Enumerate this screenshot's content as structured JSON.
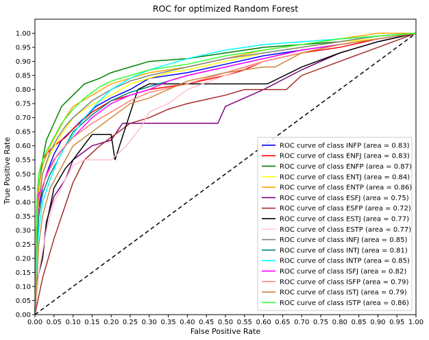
{
  "chart_data": {
    "type": "line",
    "title": "ROC for optimized Random Forest",
    "xlabel": "False Positive Rate",
    "ylabel": "True Positive Rate",
    "xlim": [
      0,
      1
    ],
    "ylim": [
      0,
      1.05
    ],
    "xticks": [
      "0.00",
      "0.05",
      "0.10",
      "0.15",
      "0.20",
      "0.25",
      "0.30",
      "0.35",
      "0.40",
      "0.45",
      "0.50",
      "0.55",
      "0.60",
      "0.65",
      "0.70",
      "0.75",
      "0.80",
      "0.85",
      "0.90",
      "0.95",
      "1.00"
    ],
    "yticks": [
      "0.00",
      "0.05",
      "0.10",
      "0.15",
      "0.20",
      "0.25",
      "0.30",
      "0.35",
      "0.40",
      "0.45",
      "0.50",
      "0.55",
      "0.60",
      "0.65",
      "0.70",
      "0.75",
      "0.80",
      "0.85",
      "0.90",
      "0.95",
      "1.00"
    ],
    "legend_position": "lower-right",
    "diagonal": {
      "x": [
        0,
        1
      ],
      "y": [
        0,
        1
      ],
      "color": "#000000",
      "style": "dashed"
    },
    "series": [
      {
        "name": "ROC curve of class INFP (area = 0.83)",
        "color": "#0000ff",
        "x": [
          0,
          0.005,
          0.01,
          0.02,
          0.03,
          0.05,
          0.07,
          0.1,
          0.13,
          0.16,
          0.2,
          0.25,
          0.3,
          0.4,
          0.5,
          0.6,
          0.7,
          0.8,
          0.9,
          1.0
        ],
        "y": [
          0,
          0.3,
          0.38,
          0.45,
          0.5,
          0.57,
          0.62,
          0.66,
          0.7,
          0.74,
          0.77,
          0.8,
          0.84,
          0.86,
          0.89,
          0.92,
          0.94,
          0.96,
          0.98,
          1.0
        ]
      },
      {
        "name": "ROC curve of class ENFJ (area = 0.83)",
        "color": "#ff0000",
        "x": [
          0,
          0.005,
          0.01,
          0.02,
          0.03,
          0.05,
          0.08,
          0.1,
          0.15,
          0.2,
          0.25,
          0.3,
          0.4,
          0.5,
          0.55,
          0.6,
          0.7,
          0.8,
          0.9,
          1.0
        ],
        "y": [
          0,
          0.4,
          0.5,
          0.55,
          0.57,
          0.6,
          0.63,
          0.66,
          0.72,
          0.76,
          0.78,
          0.8,
          0.82,
          0.85,
          0.87,
          0.9,
          0.93,
          0.95,
          0.98,
          1.0
        ]
      },
      {
        "name": "ROC curve of class ENFP (area = 0.87)",
        "color": "#008000",
        "x": [
          0,
          0.005,
          0.01,
          0.02,
          0.03,
          0.05,
          0.07,
          0.1,
          0.13,
          0.17,
          0.2,
          0.25,
          0.3,
          0.4,
          0.5,
          0.6,
          0.7,
          0.8,
          0.9,
          1.0
        ],
        "y": [
          0,
          0.35,
          0.45,
          0.55,
          0.62,
          0.68,
          0.74,
          0.78,
          0.82,
          0.84,
          0.86,
          0.88,
          0.9,
          0.91,
          0.93,
          0.95,
          0.96,
          0.97,
          0.99,
          1.0
        ]
      },
      {
        "name": "ROC curve of class ENTJ (area = 0.84)",
        "color": "#ffff00",
        "x": [
          0,
          0.005,
          0.01,
          0.02,
          0.04,
          0.06,
          0.08,
          0.1,
          0.14,
          0.2,
          0.25,
          0.3,
          0.35,
          0.4,
          0.5,
          0.6,
          0.7,
          0.8,
          0.9,
          1.0
        ],
        "y": [
          0,
          0.33,
          0.42,
          0.5,
          0.57,
          0.62,
          0.66,
          0.7,
          0.74,
          0.78,
          0.82,
          0.84,
          0.86,
          0.87,
          0.9,
          0.93,
          0.95,
          0.97,
          0.98,
          1.0
        ]
      },
      {
        "name": "ROC curve of class ENTP (area = 0.86)",
        "color": "#ffa500",
        "x": [
          0,
          0.005,
          0.01,
          0.02,
          0.04,
          0.06,
          0.08,
          0.1,
          0.15,
          0.2,
          0.25,
          0.3,
          0.4,
          0.5,
          0.6,
          0.7,
          0.8,
          0.85,
          0.9,
          1.0
        ],
        "y": [
          0,
          0.35,
          0.45,
          0.53,
          0.6,
          0.65,
          0.7,
          0.74,
          0.78,
          0.82,
          0.84,
          0.86,
          0.88,
          0.91,
          0.94,
          0.96,
          0.98,
          0.99,
          1.0,
          1.0
        ]
      },
      {
        "name": "ROC curve of class ESFJ (area = 0.75)",
        "color": "#800080",
        "x": [
          0,
          0.005,
          0.02,
          0.03,
          0.05,
          0.08,
          0.1,
          0.15,
          0.2,
          0.23,
          0.25,
          0.3,
          0.35,
          0.4,
          0.48,
          0.5,
          0.6,
          0.7,
          0.8,
          0.9,
          1.0
        ],
        "y": [
          0,
          0.12,
          0.2,
          0.33,
          0.42,
          0.48,
          0.55,
          0.6,
          0.62,
          0.68,
          0.68,
          0.68,
          0.68,
          0.68,
          0.68,
          0.74,
          0.8,
          0.87,
          0.93,
          0.97,
          1.0
        ]
      },
      {
        "name": "ROC curve of class ESFP (area = 0.72)",
        "color": "#a52a2a",
        "x": [
          0,
          0.02,
          0.02,
          0.05,
          0.07,
          0.1,
          0.13,
          0.17,
          0.2,
          0.25,
          0.3,
          0.35,
          0.4,
          0.5,
          0.55,
          0.6,
          0.66,
          0.7,
          0.8,
          0.9,
          1.0
        ],
        "y": [
          0,
          0.13,
          0.13,
          0.27,
          0.35,
          0.47,
          0.55,
          0.6,
          0.63,
          0.68,
          0.7,
          0.73,
          0.75,
          0.78,
          0.8,
          0.8,
          0.8,
          0.85,
          0.9,
          0.95,
          1.0
        ]
      },
      {
        "name": "ROC curve of class ESTJ (area = 0.77)",
        "color": "#000000",
        "x": [
          0,
          0.01,
          0.02,
          0.03,
          0.05,
          0.08,
          0.1,
          0.15,
          0.2,
          0.21,
          0.27,
          0.3,
          0.4,
          0.5,
          0.61,
          0.7,
          0.8,
          0.9,
          1.0
        ],
        "y": [
          0,
          0.15,
          0.2,
          0.32,
          0.45,
          0.52,
          0.55,
          0.64,
          0.64,
          0.55,
          0.8,
          0.82,
          0.82,
          0.82,
          0.82,
          0.88,
          0.93,
          0.97,
          1.0
        ]
      },
      {
        "name": "ROC curve of class ESTP (area = 0.77)",
        "color": "#ffc0cb",
        "x": [
          0,
          0.01,
          0.03,
          0.05,
          0.08,
          0.1,
          0.13,
          0.17,
          0.2,
          0.24,
          0.28,
          0.3,
          0.35,
          0.4,
          0.5,
          0.6,
          0.7,
          0.8,
          0.9,
          1.0
        ],
        "y": [
          0,
          0.15,
          0.3,
          0.4,
          0.48,
          0.53,
          0.55,
          0.55,
          0.55,
          0.6,
          0.67,
          0.72,
          0.75,
          0.8,
          0.85,
          0.9,
          0.93,
          0.96,
          0.98,
          1.0
        ]
      },
      {
        "name": "ROC curve of class INFJ (area = 0.85)",
        "color": "#808080",
        "x": [
          0,
          0.005,
          0.01,
          0.02,
          0.04,
          0.06,
          0.08,
          0.1,
          0.15,
          0.2,
          0.25,
          0.3,
          0.4,
          0.5,
          0.6,
          0.7,
          0.8,
          0.9,
          1.0
        ],
        "y": [
          0,
          0.3,
          0.4,
          0.5,
          0.58,
          0.63,
          0.67,
          0.7,
          0.76,
          0.8,
          0.83,
          0.85,
          0.88,
          0.91,
          0.93,
          0.95,
          0.97,
          0.99,
          1.0
        ]
      },
      {
        "name": "ROC curve of class INTJ (area = 0.81)",
        "color": "#008080",
        "x": [
          0,
          0.005,
          0.01,
          0.02,
          0.04,
          0.06,
          0.08,
          0.1,
          0.15,
          0.2,
          0.25,
          0.3,
          0.4,
          0.5,
          0.6,
          0.7,
          0.8,
          0.9,
          1.0
        ],
        "y": [
          0,
          0.25,
          0.35,
          0.43,
          0.5,
          0.55,
          0.6,
          0.65,
          0.71,
          0.76,
          0.79,
          0.81,
          0.85,
          0.88,
          0.91,
          0.94,
          0.96,
          0.98,
          1.0
        ]
      },
      {
        "name": "ROC curve of class INTP (area = 0.85)",
        "color": "#00ffff",
        "x": [
          0,
          0.005,
          0.01,
          0.02,
          0.04,
          0.06,
          0.08,
          0.1,
          0.13,
          0.17,
          0.2,
          0.25,
          0.3,
          0.35,
          0.4,
          0.5,
          0.6,
          0.7,
          0.8,
          0.9,
          1.0
        ],
        "y": [
          0,
          0.2,
          0.3,
          0.4,
          0.48,
          0.55,
          0.6,
          0.64,
          0.7,
          0.76,
          0.8,
          0.84,
          0.87,
          0.89,
          0.91,
          0.94,
          0.96,
          0.97,
          0.98,
          0.99,
          1.0
        ]
      },
      {
        "name": "ROC curve of class ISFJ (area = 0.82)",
        "color": "#ff00ff",
        "x": [
          0,
          0.005,
          0.01,
          0.02,
          0.03,
          0.05,
          0.08,
          0.1,
          0.15,
          0.2,
          0.25,
          0.3,
          0.35,
          0.4,
          0.5,
          0.6,
          0.7,
          0.8,
          0.9,
          1.0
        ],
        "y": [
          0,
          0.4,
          0.43,
          0.45,
          0.5,
          0.55,
          0.6,
          0.63,
          0.7,
          0.75,
          0.78,
          0.8,
          0.83,
          0.85,
          0.88,
          0.91,
          0.94,
          0.96,
          0.98,
          1.0
        ]
      },
      {
        "name": "ROC curve of class ISFP (area = 0.79)",
        "color": "#fa8072",
        "x": [
          0,
          0.005,
          0.01,
          0.02,
          0.04,
          0.06,
          0.08,
          0.1,
          0.15,
          0.2,
          0.25,
          0.3,
          0.4,
          0.5,
          0.6,
          0.7,
          0.8,
          0.9,
          1.0
        ],
        "y": [
          0,
          0.3,
          0.4,
          0.46,
          0.52,
          0.57,
          0.6,
          0.63,
          0.68,
          0.72,
          0.76,
          0.79,
          0.82,
          0.86,
          0.9,
          0.93,
          0.96,
          0.98,
          1.0
        ]
      },
      {
        "name": "ROC curve of class ISTJ (area = 0.79)",
        "color": "#cd853f",
        "x": [
          0,
          0.01,
          0.02,
          0.04,
          0.06,
          0.08,
          0.1,
          0.15,
          0.2,
          0.25,
          0.3,
          0.35,
          0.4,
          0.5,
          0.6,
          0.63,
          0.7,
          0.8,
          0.9,
          1.0
        ],
        "y": [
          0,
          0.25,
          0.35,
          0.45,
          0.5,
          0.55,
          0.6,
          0.65,
          0.7,
          0.75,
          0.77,
          0.8,
          0.83,
          0.86,
          0.88,
          0.88,
          0.93,
          0.96,
          0.98,
          1.0
        ]
      },
      {
        "name": "ROC curve of class ISTP (area = 0.86)",
        "color": "#32ff32",
        "x": [
          0,
          0.005,
          0.01,
          0.02,
          0.03,
          0.05,
          0.07,
          0.1,
          0.13,
          0.17,
          0.2,
          0.25,
          0.3,
          0.4,
          0.5,
          0.6,
          0.7,
          0.8,
          0.9,
          1.0
        ],
        "y": [
          0,
          0.4,
          0.5,
          0.55,
          0.58,
          0.63,
          0.68,
          0.73,
          0.77,
          0.81,
          0.83,
          0.85,
          0.87,
          0.89,
          0.92,
          0.94,
          0.96,
          0.98,
          0.99,
          1.0
        ]
      }
    ]
  }
}
